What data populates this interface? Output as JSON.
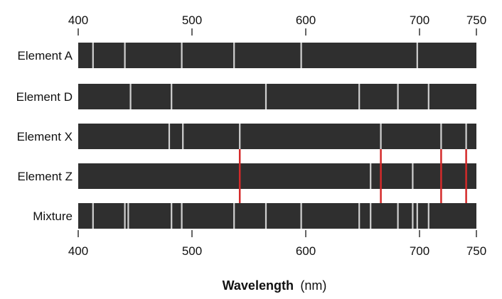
{
  "colors": {
    "strip": "#2f2f2f",
    "line": "#d0d0d0",
    "match": "#d42a2a",
    "tick": "#333333"
  },
  "axis": {
    "ticks": [
      400,
      500,
      600,
      700,
      750
    ],
    "tick_labels": [
      "400",
      "500",
      "600",
      "700",
      "750"
    ],
    "min": 400,
    "max": 750,
    "label_bold": "Wavelength",
    "label_unit": "(nm)"
  },
  "rows": [
    {
      "label": "Element A",
      "lines": [
        413,
        441,
        491,
        537,
        596,
        698
      ]
    },
    {
      "label": "Element D",
      "lines": [
        446,
        482,
        565,
        647,
        681,
        708
      ]
    },
    {
      "label": "Element X",
      "lines": [
        480,
        492,
        542,
        666,
        719,
        741
      ]
    },
    {
      "label": "Element Z",
      "lines": [
        657,
        694
      ]
    },
    {
      "label": "Mixture",
      "lines": [
        413,
        441,
        444,
        482,
        491,
        537,
        565,
        596,
        647,
        657,
        681,
        694,
        698,
        708
      ]
    }
  ],
  "match_lines": [
    542,
    666,
    719,
    741
  ]
}
